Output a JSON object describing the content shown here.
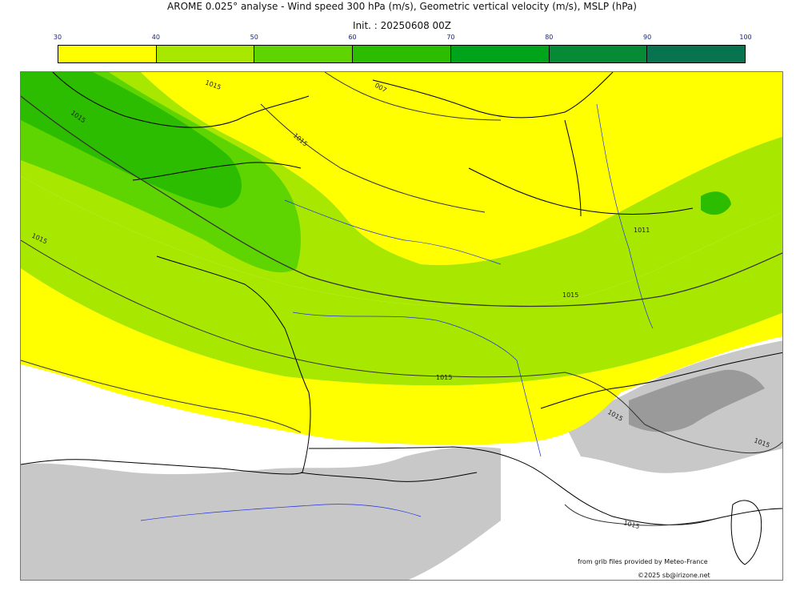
{
  "header": {
    "title": "AROME 0.025° analyse - Wind speed 300 hPa (m/s), Geometric vertical velocity (m/s), MSLP (hPa)",
    "init": "Init. : 20250608 00Z"
  },
  "colorbar": {
    "ticks": [
      "30",
      "40",
      "50",
      "60",
      "70",
      "80",
      "90",
      "100"
    ],
    "colors": [
      "#ffff00",
      "#a8e800",
      "#5ed400",
      "#2cbc00",
      "#00a41a",
      "#078a36",
      "#08734f"
    ]
  },
  "map": {
    "isobar_labels": [
      "1015",
      "1015",
      "1015",
      "1015",
      "1015",
      "1015",
      "1015",
      "1015",
      "1011",
      "1015",
      "007"
    ],
    "colors": {
      "land_border": "#000000",
      "rivers": "#2233dd",
      "isobars": "#333333",
      "relief_grey": "#c8c8c8"
    }
  },
  "credits": {
    "source": "from grib files provided by Meteo-France",
    "copyright": "©2025 sb@irizone.net"
  }
}
